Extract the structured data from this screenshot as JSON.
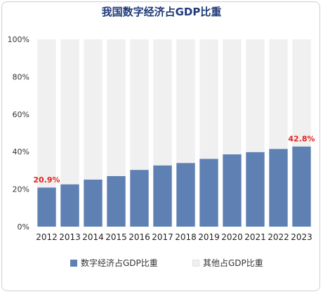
{
  "chart_data": {
    "type": "bar",
    "stacked": true,
    "title": "我国数字经济占GDP比重",
    "categories": [
      "2012",
      "2013",
      "2014",
      "2015",
      "2016",
      "2017",
      "2018",
      "2019",
      "2020",
      "2021",
      "2022",
      "2023"
    ],
    "series": [
      {
        "name": "数字经济占GDP比重",
        "values": [
          20.9,
          22.6,
          25.1,
          27.0,
          30.3,
          32.7,
          34.0,
          36.2,
          38.6,
          39.8,
          41.5,
          42.8
        ],
        "color": "#5e80b3"
      },
      {
        "name": "其他占GDP比重",
        "values": [
          79.1,
          77.4,
          74.9,
          73.0,
          69.7,
          67.3,
          66.0,
          63.8,
          61.4,
          60.2,
          58.5,
          57.2
        ],
        "color": "#f0f0f0"
      }
    ],
    "yticks": [
      "0%",
      "20%",
      "40%",
      "60%",
      "80%",
      "100%"
    ],
    "ylim": [
      0,
      100
    ],
    "data_labels": [
      {
        "category": "2012",
        "text": "20.9%"
      },
      {
        "category": "2023",
        "text": "42.8%"
      }
    ],
    "label_color": "#e8231f",
    "grid": false,
    "legend_position": "bottom"
  }
}
